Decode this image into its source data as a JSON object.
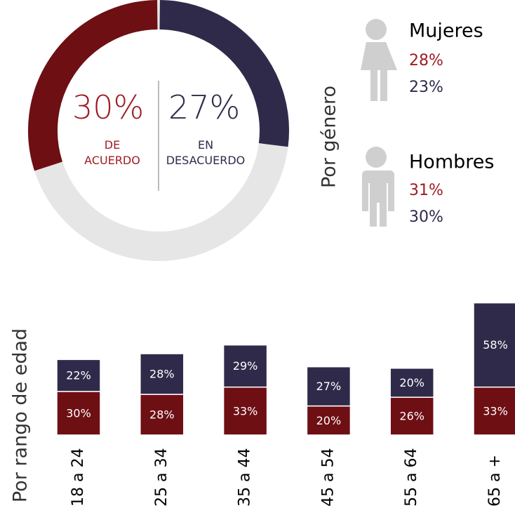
{
  "chart_data": [
    {
      "type": "donut",
      "categories": [
        "DE ACUERDO",
        "EN DESACUERDO"
      ],
      "values": [
        30,
        27
      ],
      "value_labels": [
        "30%",
        "27%"
      ],
      "colors": [
        "#6e0f14",
        "#302a4a"
      ],
      "label_colors": [
        "#a01c24",
        "#302a4a"
      ],
      "track_color": "#e6e6e6"
    },
    {
      "type": "bar",
      "ylabel": "Por rango de edad",
      "categories": [
        "18 a 24",
        "25 a 34",
        "35 a 44",
        "45 a 54",
        "55 a 64",
        "65 a +"
      ],
      "stacked": true,
      "ylim": [
        0,
        100
      ],
      "series": [
        {
          "color": "#6e0f14",
          "values": [
            30,
            28,
            33,
            20,
            26,
            33
          ],
          "value_labels": [
            "30%",
            "28%",
            "33%",
            "20%",
            "26%",
            "33%"
          ]
        },
        {
          "color": "#302a4a",
          "values": [
            22,
            28,
            29,
            27,
            20,
            58
          ],
          "value_labels": [
            "22%",
            "28%",
            "29%",
            "27%",
            "20%",
            "58%"
          ]
        }
      ]
    }
  ],
  "gender": {
    "label": "Por género",
    "groups": [
      {
        "name": "Mujeres",
        "values": [
          "28%",
          "23%"
        ]
      },
      {
        "name": "Hombres",
        "values": [
          "31%",
          "30%"
        ]
      }
    ]
  }
}
